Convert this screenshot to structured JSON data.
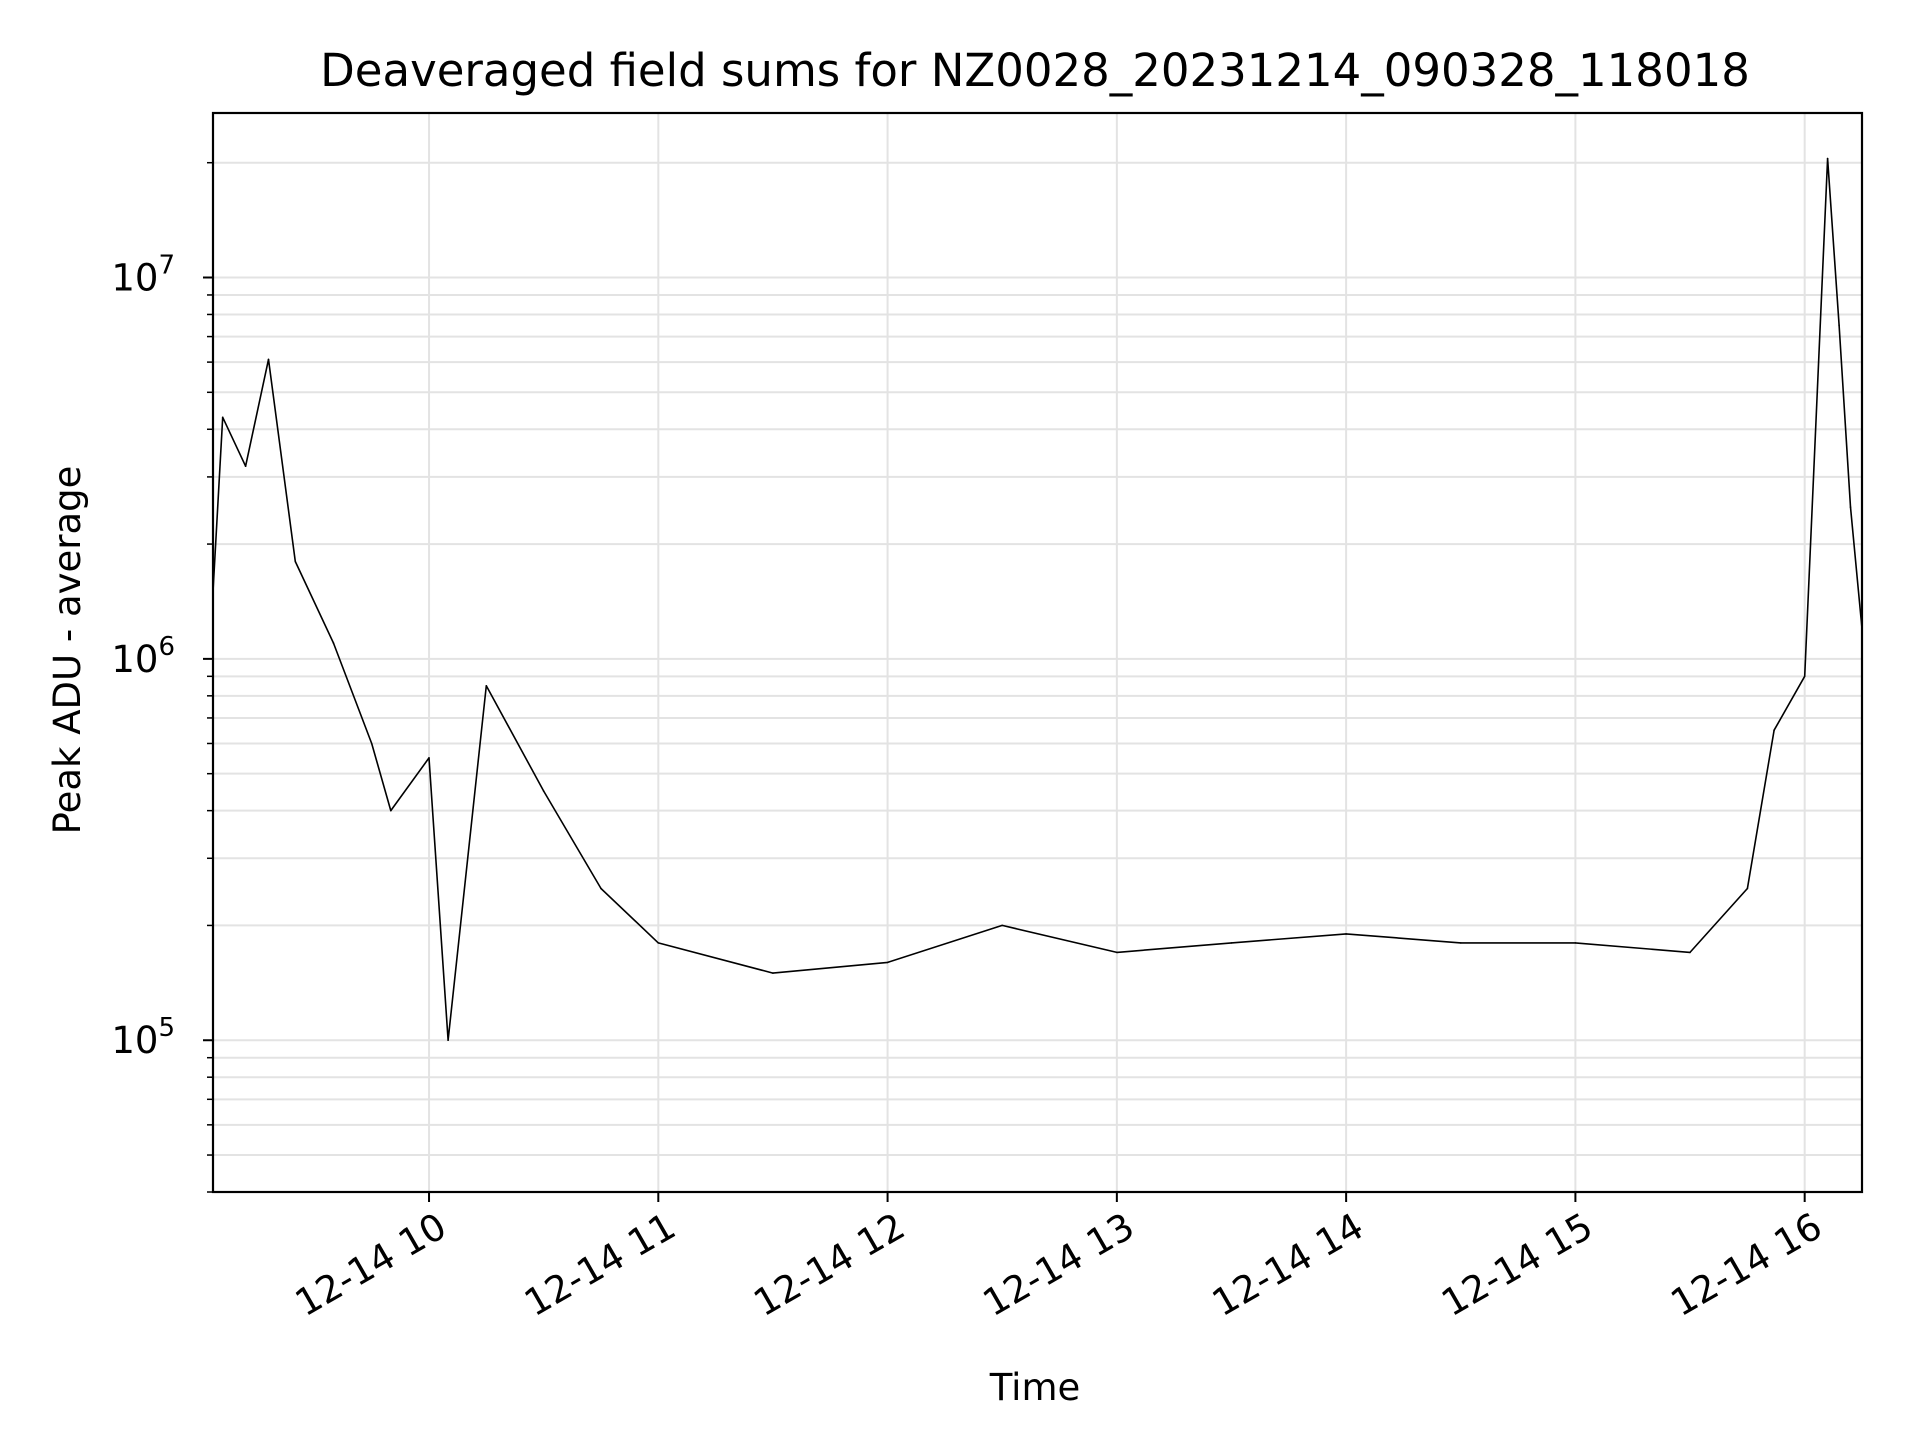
{
  "chart_data": {
    "type": "line",
    "title": "Deaveraged field sums for NZ0028_20231214_090328_118018",
    "xlabel": "Time",
    "ylabel": "Peak ADU - average",
    "yscale": "log",
    "ylim": [
      40000,
      27000000
    ],
    "xlim": [
      "2023-12-14 09:03:28",
      "2023-12-14 16:15:00"
    ],
    "grid": true,
    "legend": "none",
    "line_color": "#000000",
    "x_ticks": [
      {
        "label": "12-14 10",
        "time": "2023-12-14 10:00:00"
      },
      {
        "label": "12-14 11",
        "time": "2023-12-14 11:00:00"
      },
      {
        "label": "12-14 12",
        "time": "2023-12-14 12:00:00"
      },
      {
        "label": "12-14 13",
        "time": "2023-12-14 13:00:00"
      },
      {
        "label": "12-14 14",
        "time": "2023-12-14 14:00:00"
      },
      {
        "label": "12-14 15",
        "time": "2023-12-14 15:00:00"
      },
      {
        "label": "12-14 16",
        "time": "2023-12-14 16:00:00"
      }
    ],
    "y_ticks": [
      {
        "base": "10",
        "exp": "5",
        "value": 100000
      },
      {
        "base": "10",
        "exp": "6",
        "value": 1000000
      },
      {
        "base": "10",
        "exp": "7",
        "value": 10000000
      }
    ],
    "series": [
      {
        "points": [
          [
            "2023-12-14 09:03:28",
            1500000
          ],
          [
            "2023-12-14 09:06:00",
            4300000
          ],
          [
            "2023-12-14 09:12:00",
            3200000
          ],
          [
            "2023-12-14 09:18:00",
            6100000
          ],
          [
            "2023-12-14 09:25:00",
            1800000
          ],
          [
            "2023-12-14 09:35:00",
            1100000
          ],
          [
            "2023-12-14 09:45:00",
            600000
          ],
          [
            "2023-12-14 09:50:00",
            400000
          ],
          [
            "2023-12-14 10:00:00",
            550000
          ],
          [
            "2023-12-14 10:05:00",
            100000
          ],
          [
            "2023-12-14 10:15:00",
            850000
          ],
          [
            "2023-12-14 10:30:00",
            450000
          ],
          [
            "2023-12-14 10:45:00",
            250000
          ],
          [
            "2023-12-14 11:00:00",
            180000
          ],
          [
            "2023-12-14 11:30:00",
            150000
          ],
          [
            "2023-12-14 12:00:00",
            160000
          ],
          [
            "2023-12-14 12:30:00",
            200000
          ],
          [
            "2023-12-14 13:00:00",
            170000
          ],
          [
            "2023-12-14 13:30:00",
            180000
          ],
          [
            "2023-12-14 14:00:00",
            190000
          ],
          [
            "2023-12-14 14:30:00",
            180000
          ],
          [
            "2023-12-14 15:00:00",
            180000
          ],
          [
            "2023-12-14 15:30:00",
            170000
          ],
          [
            "2023-12-14 15:45:00",
            250000
          ],
          [
            "2023-12-14 15:52:00",
            650000
          ],
          [
            "2023-12-14 16:00:00",
            900000
          ],
          [
            "2023-12-14 16:06:00",
            20500000
          ],
          [
            "2023-12-14 16:09:00",
            7500000
          ],
          [
            "2023-12-14 16:12:00",
            2500000
          ],
          [
            "2023-12-14 16:15:00",
            1200000
          ]
        ]
      }
    ]
  }
}
